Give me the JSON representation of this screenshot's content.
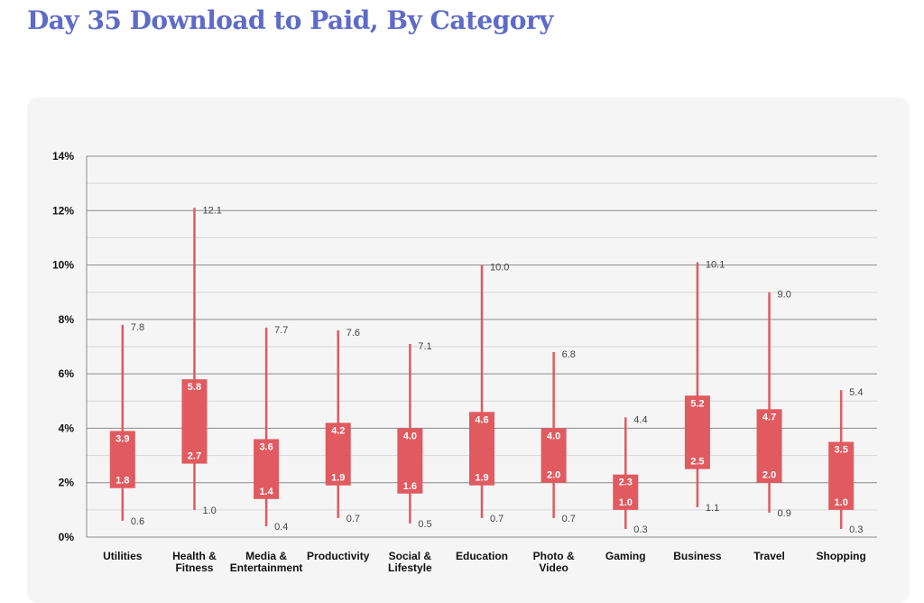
{
  "page": {
    "title": "Day 35 Download to Paid, By Category"
  },
  "colors": {
    "title": "#5e6bc8",
    "box": "#e05a5f",
    "whisker": "#e05a5f",
    "grid_major": "#8a8a8a",
    "grid_minor": "#d6d6d6",
    "panel": "#f5f5f5"
  },
  "chart_data": {
    "type": "box",
    "title": "Day 35 Download to Paid, By Category",
    "ylim": [
      0,
      14
    ],
    "yticks": [
      "0%",
      "2%",
      "4%",
      "6%",
      "8%",
      "10%",
      "12%",
      "14%"
    ],
    "ytick_values": [
      0,
      2,
      4,
      6,
      8,
      10,
      12,
      14
    ],
    "grid": true,
    "categories": [
      "Utilities",
      "Health & Fitness",
      "Media & Entertainment",
      "Productivity",
      "Social & Lifestyle",
      "Education",
      "Photo & Video",
      "Gaming",
      "Business",
      "Travel",
      "Shopping"
    ],
    "category_lines": [
      [
        "Utilities"
      ],
      [
        "Health &",
        "Fitness"
      ],
      [
        "Media &",
        "Entertainment"
      ],
      [
        "Productivity"
      ],
      [
        "Social &",
        "Lifestyle"
      ],
      [
        "Education"
      ],
      [
        "Photo &",
        "Video"
      ],
      [
        "Gaming"
      ],
      [
        "Business"
      ],
      [
        "Travel"
      ],
      [
        "Shopping"
      ]
    ],
    "max": [
      7.8,
      12.1,
      7.7,
      7.6,
      7.1,
      10.0,
      6.8,
      4.4,
      10.1,
      9.0,
      5.4
    ],
    "q3": [
      3.9,
      5.8,
      3.6,
      4.2,
      4.0,
      4.6,
      4.0,
      2.3,
      5.2,
      4.7,
      3.5
    ],
    "q1": [
      1.8,
      2.7,
      1.4,
      1.9,
      1.6,
      1.9,
      2.0,
      1.0,
      2.5,
      2.0,
      1.0
    ],
    "min": [
      0.6,
      1.0,
      0.4,
      0.7,
      0.5,
      0.7,
      0.7,
      0.3,
      1.1,
      0.9,
      0.3
    ],
    "max_labels": [
      "7.8",
      "12.1",
      "7.7",
      "7.6",
      "7.1",
      "10.0",
      "6.8",
      "4.4",
      "10.1",
      "9.0",
      "5.4"
    ],
    "q3_labels": [
      "3.9",
      "5.8",
      "3.6",
      "4.2",
      "4.0",
      "4.6",
      "4.0",
      "2.3",
      "5.2",
      "4.7",
      "3.5"
    ],
    "q1_labels": [
      "1.8",
      "2.7",
      "1.4",
      "1.9",
      "1.6",
      "1.9",
      "2.0",
      "1.0",
      "2.5",
      "2.0",
      "1.0"
    ],
    "min_labels": [
      "0.6",
      "1.0",
      "0.4",
      "0.7",
      "0.5",
      "0.7",
      "0.7",
      "0.3",
      "1.1",
      "0.9",
      "0.3"
    ]
  }
}
